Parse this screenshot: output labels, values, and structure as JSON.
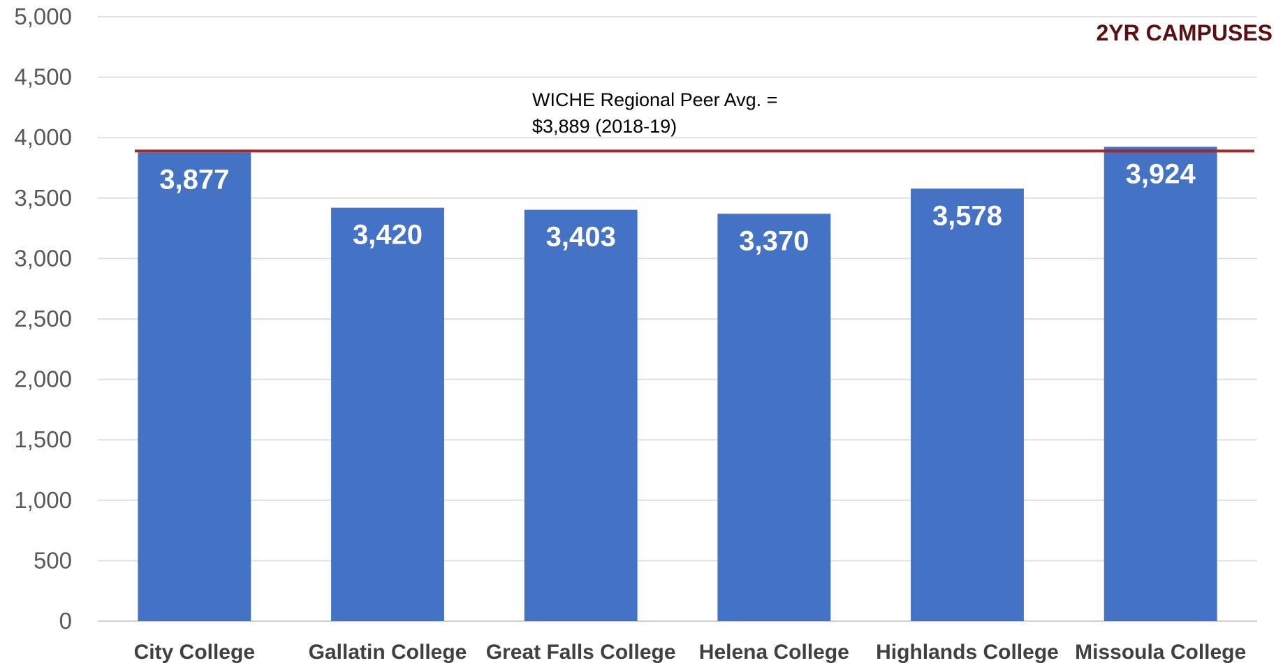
{
  "chart_data": {
    "type": "bar",
    "categories": [
      "City College",
      "Gallatin College",
      "Great Falls College",
      "Helena College",
      "Highlands College",
      "Missoula College"
    ],
    "values": [
      3877,
      3420,
      3403,
      3370,
      3578,
      3924
    ],
    "data_labels": [
      "3,877",
      "3,420",
      "3,403",
      "3,370",
      "3,578",
      "3,924"
    ],
    "ylim": [
      0,
      5000
    ],
    "yticks": [
      0,
      500,
      1000,
      1500,
      2000,
      2500,
      3000,
      3500,
      4000,
      4500,
      5000
    ],
    "ytick_labels": [
      "0",
      "500",
      "1,000",
      "1,500",
      "2,000",
      "2,500",
      "3,000",
      "3,500",
      "4,000",
      "4,500",
      "5,000"
    ],
    "grid": true,
    "bar_color": "#4472C4",
    "reference_line": {
      "value": 3889,
      "color": "#9E2A2B",
      "label_lines": [
        "WICHE Regional Peer Avg. =",
        "$3,889 (2018-19)"
      ]
    },
    "corner_label": "2YR CAMPUSES",
    "corner_label_color": "#5A1010"
  }
}
